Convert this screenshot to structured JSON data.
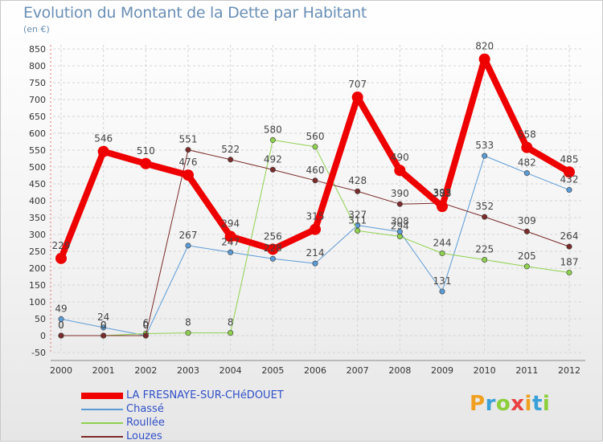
{
  "page": {
    "title": "Evolution du Montant de la Dette par Habitant",
    "subtitle": "(en €)",
    "logo_text": "Proxiti"
  },
  "chart_data": {
    "type": "line",
    "title": "Evolution du Montant de la Dette par Habitant",
    "ylabel": "(en €)",
    "xlabel": "",
    "ylim": [
      -50,
      850
    ],
    "y_ticks": [
      -50,
      0,
      50,
      100,
      150,
      200,
      250,
      300,
      350,
      400,
      450,
      500,
      550,
      600,
      650,
      700,
      750,
      800,
      850
    ],
    "categories": [
      "2000",
      "2001",
      "2002",
      "2003",
      "2004",
      "2005",
      "2006",
      "2007",
      "2008",
      "2009",
      "2010",
      "2011",
      "2012"
    ],
    "grid": true,
    "legend_position": "bottom-left",
    "series": [
      {
        "name": "LA FRESNAYE-SUR-CHéDOUET",
        "color": "#ee0000",
        "line_width": 8,
        "values": [
          229,
          546,
          510,
          476,
          294,
          256,
          315,
          707,
          490,
          383,
          820,
          558,
          485
        ],
        "labels": [
          "229",
          "546",
          "510",
          "476",
          "294",
          "256",
          "315",
          "707",
          "490",
          "383",
          "820",
          "558",
          "485"
        ]
      },
      {
        "name": "Chassé",
        "color": "#5b9bd5",
        "line_width": 1,
        "values": [
          49,
          24,
          0,
          267,
          247,
          228,
          214,
          327,
          308,
          131,
          533,
          482,
          432
        ],
        "labels": [
          "49",
          "24",
          "0",
          "267",
          "247",
          "228",
          "214",
          "327",
          "308",
          "131",
          "533",
          "482",
          "432"
        ]
      },
      {
        "name": "Roullée",
        "color": "#8fd14f",
        "line_width": 1,
        "values": [
          0,
          0,
          6,
          8,
          8,
          580,
          560,
          311,
          294,
          244,
          225,
          205,
          187
        ],
        "labels": [
          "0",
          "0",
          "6",
          "8",
          "8",
          "580",
          "560",
          "311",
          "294",
          "244",
          "225",
          "205",
          "187"
        ]
      },
      {
        "name": "Louzes",
        "color": "#7b2b2b",
        "line_width": 1,
        "values": [
          0,
          0,
          0,
          551,
          522,
          492,
          460,
          428,
          390,
          393,
          352,
          309,
          264
        ],
        "labels": [
          "0",
          "0",
          "0",
          "551",
          "522",
          "492",
          "460",
          "428",
          "390",
          "393",
          "352",
          "309",
          "264"
        ]
      }
    ]
  }
}
